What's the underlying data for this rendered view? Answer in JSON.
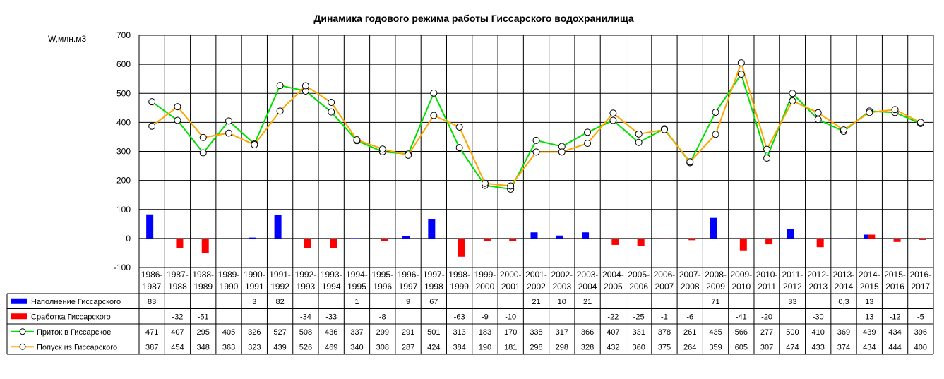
{
  "chart_data": {
    "type": "bar+line",
    "title": "Динамика годового режима работы Гиссарского водохранилища",
    "ylabel": "W,млн.м3",
    "ylim": [
      -100,
      700
    ],
    "yticks": [
      "-100",
      "0",
      "100",
      "200",
      "300",
      "400",
      "500",
      "600",
      "700"
    ],
    "grid": true,
    "legend": "data table, left",
    "categories": [
      "1986-1987",
      "1987-1988",
      "1988-1989",
      "1989-1990",
      "1990-1991",
      "1991-1992",
      "1992-1993",
      "1993-1994",
      "1994-1995",
      "1995-1996",
      "1996-1997",
      "1997-1998",
      "1998-1999",
      "1999-2000",
      "2000-2001",
      "2001-2002",
      "2002-2003",
      "2003-2004",
      "2004-2005",
      "2005-2006",
      "2006-2007",
      "2007-2008",
      "2008-2009",
      "2009-2010",
      "2010-2011",
      "2011-2012",
      "2012-2013",
      "2013-2014",
      "2014-2015",
      "2015-2016",
      "2016-2017"
    ],
    "series": [
      {
        "name": "Наполнение Гиссарского",
        "kind": "bar",
        "color": "#0000ff",
        "values": [
          83,
          null,
          null,
          null,
          3,
          82,
          null,
          null,
          1,
          null,
          9,
          67,
          null,
          null,
          null,
          21,
          10,
          21,
          null,
          null,
          null,
          null,
          71,
          null,
          null,
          33,
          null,
          0.3,
          13,
          null,
          null
        ],
        "labels": [
          "83",
          "",
          "",
          "",
          "3",
          "82",
          "",
          "",
          "1",
          "",
          "9",
          "67",
          "",
          "",
          "",
          "21",
          "10",
          "21",
          "",
          "",
          "",
          "",
          "71",
          "",
          "",
          "33",
          "",
          "0,3",
          "13",
          "",
          ""
        ]
      },
      {
        "name": "Сработка Гиссарского",
        "kind": "bar",
        "color": "#ff0000",
        "values": [
          null,
          -32,
          -51,
          null,
          null,
          null,
          -34,
          -33,
          null,
          -8,
          null,
          null,
          -63,
          -9,
          -10,
          null,
          null,
          null,
          -22,
          -25,
          -1,
          -6,
          null,
          -41,
          -20,
          null,
          -30,
          null,
          13,
          -12,
          -5
        ],
        "labels": [
          "",
          "-32",
          "-51",
          "",
          "",
          "",
          "-34",
          "-33",
          "",
          "-8",
          "",
          "",
          "-63",
          "-9",
          "-10",
          "",
          "",
          "",
          "-22",
          "-25",
          "-1",
          "-6",
          "",
          "-41",
          "-20",
          "",
          "-30",
          "",
          "13",
          "-12",
          "-5"
        ]
      },
      {
        "name": "Приток в Гиссарское",
        "kind": "line",
        "color": "#00e000",
        "values": [
          471,
          407,
          295,
          405,
          326,
          527,
          508,
          436,
          337,
          299,
          291,
          501,
          313,
          183,
          170,
          338,
          317,
          366,
          407,
          331,
          378,
          261,
          435,
          566,
          277,
          500,
          410,
          369,
          439,
          434,
          396
        ],
        "labels": [
          "471",
          "407",
          "295",
          "405",
          "326",
          "527",
          "508",
          "436",
          "337",
          "299",
          "291",
          "501",
          "313",
          "183",
          "170",
          "338",
          "317",
          "366",
          "407",
          "331",
          "378",
          "261",
          "435",
          "566",
          "277",
          "500",
          "410",
          "369",
          "439",
          "434",
          "396"
        ]
      },
      {
        "name": "Попуск из Гиссарского",
        "kind": "line",
        "color": "#ffa500",
        "values": [
          387,
          454,
          348,
          363,
          323,
          439,
          526,
          469,
          340,
          308,
          287,
          424,
          384,
          190,
          181,
          298,
          298,
          328,
          432,
          360,
          375,
          264,
          359,
          605,
          307,
          474,
          433,
          374,
          434,
          444,
          400
        ],
        "labels": [
          "387",
          "454",
          "348",
          "363",
          "323",
          "439",
          "526",
          "469",
          "340",
          "308",
          "287",
          "424",
          "384",
          "190",
          "181",
          "298",
          "298",
          "328",
          "432",
          "360",
          "375",
          "264",
          "359",
          "605",
          "307",
          "474",
          "433",
          "374",
          "434",
          "444",
          "400"
        ]
      }
    ]
  }
}
